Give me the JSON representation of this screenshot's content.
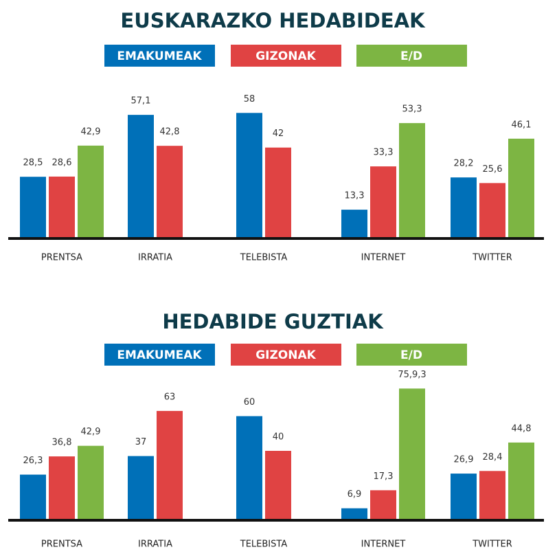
{
  "chart_data": [
    {
      "type": "bar",
      "title": "EUSKARAZKO HEDABIDEAK",
      "categories": [
        "PRENTSA",
        "IRRATIA",
        "TELEBISTA",
        "INTERNET",
        "TWITTER"
      ],
      "series": [
        {
          "name": "EMAKUMEAK",
          "color": "#0070b8",
          "values": [
            28.5,
            57.1,
            58,
            13.3,
            28.2
          ],
          "value_labels": [
            "28,5",
            "57,1",
            "58",
            "13,3",
            "28,2"
          ]
        },
        {
          "name": "GIZONAK",
          "color": "#e04343",
          "values": [
            28.6,
            42.8,
            42,
            33.3,
            25.6
          ],
          "value_labels": [
            "28,6",
            "42,8",
            "42",
            "33,3",
            "25,6"
          ]
        },
        {
          "name": "E/D",
          "color": "#7db543",
          "values": [
            42.9,
            null,
            null,
            53.3,
            46.1
          ],
          "value_labels": [
            "42,9",
            null,
            null,
            "53,3",
            "46,1"
          ]
        }
      ],
      "ylim": [
        0,
        60
      ]
    },
    {
      "type": "bar",
      "title": "HEDABIDE GUZTIAK",
      "categories": [
        "PRENTSA",
        "IRRATIA",
        "TELEBISTA",
        "INTERNET",
        "TWITTER"
      ],
      "series": [
        {
          "name": "EMAKUMEAK",
          "color": "#0070b8",
          "values": [
            26.3,
            37,
            60,
            6.9,
            26.9
          ],
          "value_labels": [
            "26,3",
            "37",
            "60",
            "6,9",
            "26,9"
          ]
        },
        {
          "name": "GIZONAK",
          "color": "#e04343",
          "values": [
            36.8,
            63,
            40,
            17.3,
            28.4
          ],
          "value_labels": [
            "36,8",
            "63",
            "40",
            "17,3",
            "28,4"
          ]
        },
        {
          "name": "E/D",
          "color": "#7db543",
          "values": [
            42.9,
            null,
            null,
            75.9,
            44.8
          ],
          "value_labels": [
            "42,9",
            null,
            null,
            "75,9,3",
            "44,8"
          ]
        }
      ],
      "ylim": [
        0,
        80
      ]
    }
  ]
}
